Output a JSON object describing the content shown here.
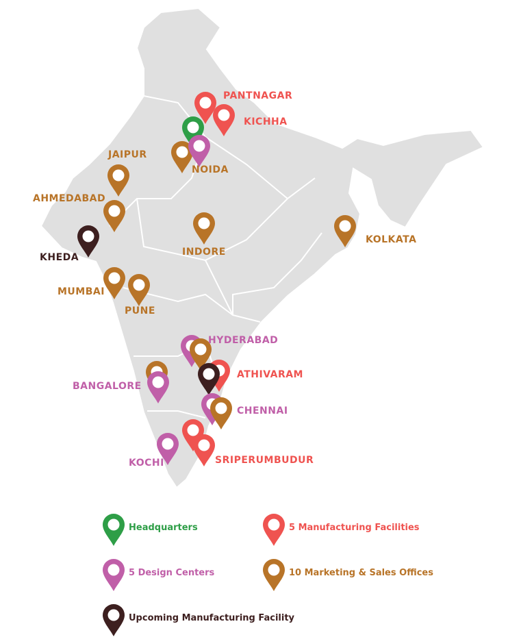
{
  "colors": {
    "headquarters": "#2e9e47",
    "manufacturing": "#ef5350",
    "design": "#c05fa8",
    "marketing": "#b87428",
    "upcoming": "#3d1f1f",
    "land": "#e0e0e0"
  },
  "locations": [
    {
      "label": "PANTNAGAR",
      "type": "manufacturing"
    },
    {
      "label": "KICHHA",
      "type": "manufacturing"
    },
    {
      "label": "NOIDA",
      "type": "marketing"
    },
    {
      "label": "JAIPUR",
      "type": "marketing"
    },
    {
      "label": "AHMEDABAD",
      "type": "marketing"
    },
    {
      "label": "KHEDA",
      "type": "upcoming"
    },
    {
      "label": "INDORE",
      "type": "marketing"
    },
    {
      "label": "KOLKATA",
      "type": "marketing"
    },
    {
      "label": "MUMBAI",
      "type": "marketing"
    },
    {
      "label": "PUNE",
      "type": "marketing"
    },
    {
      "label": "HYDERABAD",
      "type": "design"
    },
    {
      "label": "ATHIVARAM",
      "type": "manufacturing"
    },
    {
      "label": "BANGALORE",
      "type": "design"
    },
    {
      "label": "CHENNAI",
      "type": "design"
    },
    {
      "label": "KOCHI",
      "type": "design"
    },
    {
      "label": "SRIPERUMBUDUR",
      "type": "manufacturing"
    }
  ],
  "legend": [
    {
      "label": "Headquarters",
      "type": "headquarters"
    },
    {
      "label": "5 Manufacturing Facilities",
      "type": "manufacturing"
    },
    {
      "label": "5 Design Centers",
      "type": "design"
    },
    {
      "label": "10 Marketing & Sales Offices",
      "type": "marketing"
    },
    {
      "label": "Upcoming Manufacturing Facility",
      "type": "upcoming"
    }
  ]
}
